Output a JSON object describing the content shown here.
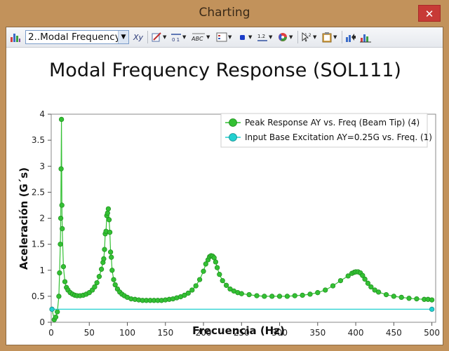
{
  "window": {
    "title": "Charting",
    "close_glyph": "✕"
  },
  "toolbar": {
    "chart_select_value": "2..Modal Frequency",
    "icons": [
      "bar-chart-icon",
      "axis-title-icon",
      "pen-edit-icon",
      "axis-scale-icon",
      "text-label-icon",
      "legend-icon",
      "marker-icon",
      "number-format-icon",
      "color-wheel-icon",
      "pointer-value-icon",
      "clipboard-icon",
      "export-chart-icon",
      "chart-settings-icon"
    ]
  },
  "chart_data": {
    "type": "line",
    "title": "Modal Frequency Response (SOL111)",
    "xlabel": "Frecuencia (Hz)",
    "ylabel": "Aceleración (G´s)",
    "xlim": [
      0,
      505
    ],
    "ylim": [
      0,
      4
    ],
    "xticks": [
      "0",
      "50",
      "100",
      "150",
      "200",
      "250",
      "300",
      "350",
      "400",
      "450",
      "500"
    ],
    "yticks": [
      "0",
      "0.5",
      "1",
      "1.5",
      "2",
      "2.5",
      "3",
      "3.5",
      "4"
    ],
    "grid": false,
    "legend_position": "top-right",
    "series": [
      {
        "name": "Peak Response AY vs. Freq (Beam Tip) (4)",
        "color": "#33c033",
        "edge": "#1e8c1e",
        "points": [
          [
            1,
            0.25
          ],
          [
            4,
            0.05
          ],
          [
            6,
            0.1
          ],
          [
            8,
            0.2
          ],
          [
            10,
            0.5
          ],
          [
            11,
            0.95
          ],
          [
            12,
            1.5
          ],
          [
            12.5,
            2.0
          ],
          [
            13,
            2.95
          ],
          [
            13.5,
            3.9
          ],
          [
            14,
            2.25
          ],
          [
            14.5,
            1.8
          ],
          [
            16,
            1.07
          ],
          [
            18,
            0.78
          ],
          [
            20,
            0.67
          ],
          [
            22,
            0.62
          ],
          [
            25,
            0.57
          ],
          [
            28,
            0.54
          ],
          [
            31,
            0.52
          ],
          [
            34,
            0.51
          ],
          [
            38,
            0.51
          ],
          [
            42,
            0.52
          ],
          [
            46,
            0.54
          ],
          [
            50,
            0.57
          ],
          [
            54,
            0.62
          ],
          [
            57,
            0.68
          ],
          [
            60,
            0.76
          ],
          [
            63,
            0.88
          ],
          [
            66,
            1.02
          ],
          [
            68,
            1.15
          ],
          [
            69,
            1.22
          ],
          [
            70,
            1.4
          ],
          [
            71,
            1.7
          ],
          [
            72,
            1.75
          ],
          [
            73,
            2.05
          ],
          [
            74,
            2.1
          ],
          [
            75,
            2.18
          ],
          [
            76,
            1.97
          ],
          [
            77,
            1.73
          ],
          [
            78,
            1.35
          ],
          [
            79,
            1.25
          ],
          [
            80,
            1.0
          ],
          [
            82,
            0.82
          ],
          [
            84,
            0.72
          ],
          [
            87,
            0.64
          ],
          [
            90,
            0.58
          ],
          [
            93,
            0.54
          ],
          [
            96,
            0.51
          ],
          [
            100,
            0.48
          ],
          [
            105,
            0.45
          ],
          [
            110,
            0.44
          ],
          [
            115,
            0.43
          ],
          [
            120,
            0.42
          ],
          [
            125,
            0.42
          ],
          [
            130,
            0.42
          ],
          [
            135,
            0.42
          ],
          [
            140,
            0.42
          ],
          [
            145,
            0.42
          ],
          [
            150,
            0.43
          ],
          [
            155,
            0.44
          ],
          [
            160,
            0.45
          ],
          [
            165,
            0.47
          ],
          [
            170,
            0.49
          ],
          [
            175,
            0.52
          ],
          [
            180,
            0.56
          ],
          [
            185,
            0.62
          ],
          [
            190,
            0.7
          ],
          [
            195,
            0.82
          ],
          [
            200,
            0.98
          ],
          [
            203,
            1.12
          ],
          [
            206,
            1.2
          ],
          [
            208,
            1.26
          ],
          [
            210,
            1.28
          ],
          [
            212,
            1.27
          ],
          [
            214,
            1.24
          ],
          [
            216,
            1.16
          ],
          [
            218,
            1.05
          ],
          [
            221,
            0.92
          ],
          [
            225,
            0.8
          ],
          [
            230,
            0.71
          ],
          [
            235,
            0.64
          ],
          [
            240,
            0.6
          ],
          [
            245,
            0.57
          ],
          [
            250,
            0.55
          ],
          [
            260,
            0.53
          ],
          [
            270,
            0.51
          ],
          [
            280,
            0.5
          ],
          [
            290,
            0.5
          ],
          [
            300,
            0.5
          ],
          [
            310,
            0.5
          ],
          [
            320,
            0.51
          ],
          [
            330,
            0.52
          ],
          [
            340,
            0.54
          ],
          [
            350,
            0.57
          ],
          [
            360,
            0.62
          ],
          [
            370,
            0.7
          ],
          [
            380,
            0.8
          ],
          [
            390,
            0.89
          ],
          [
            395,
            0.94
          ],
          [
            398,
            0.96
          ],
          [
            400,
            0.97
          ],
          [
            403,
            0.97
          ],
          [
            406,
            0.95
          ],
          [
            409,
            0.9
          ],
          [
            412,
            0.83
          ],
          [
            416,
            0.75
          ],
          [
            420,
            0.68
          ],
          [
            425,
            0.62
          ],
          [
            430,
            0.58
          ],
          [
            440,
            0.53
          ],
          [
            450,
            0.5
          ],
          [
            460,
            0.48
          ],
          [
            470,
            0.46
          ],
          [
            480,
            0.45
          ],
          [
            490,
            0.44
          ],
          [
            495,
            0.44
          ],
          [
            500,
            0.43
          ]
        ]
      },
      {
        "name": "Input Base Excitation AY=0.25G vs. Freq. (1)",
        "color": "#22d0d0",
        "edge": "#138c8c",
        "points": [
          [
            1,
            0.25
          ],
          [
            500,
            0.25
          ]
        ]
      }
    ]
  }
}
